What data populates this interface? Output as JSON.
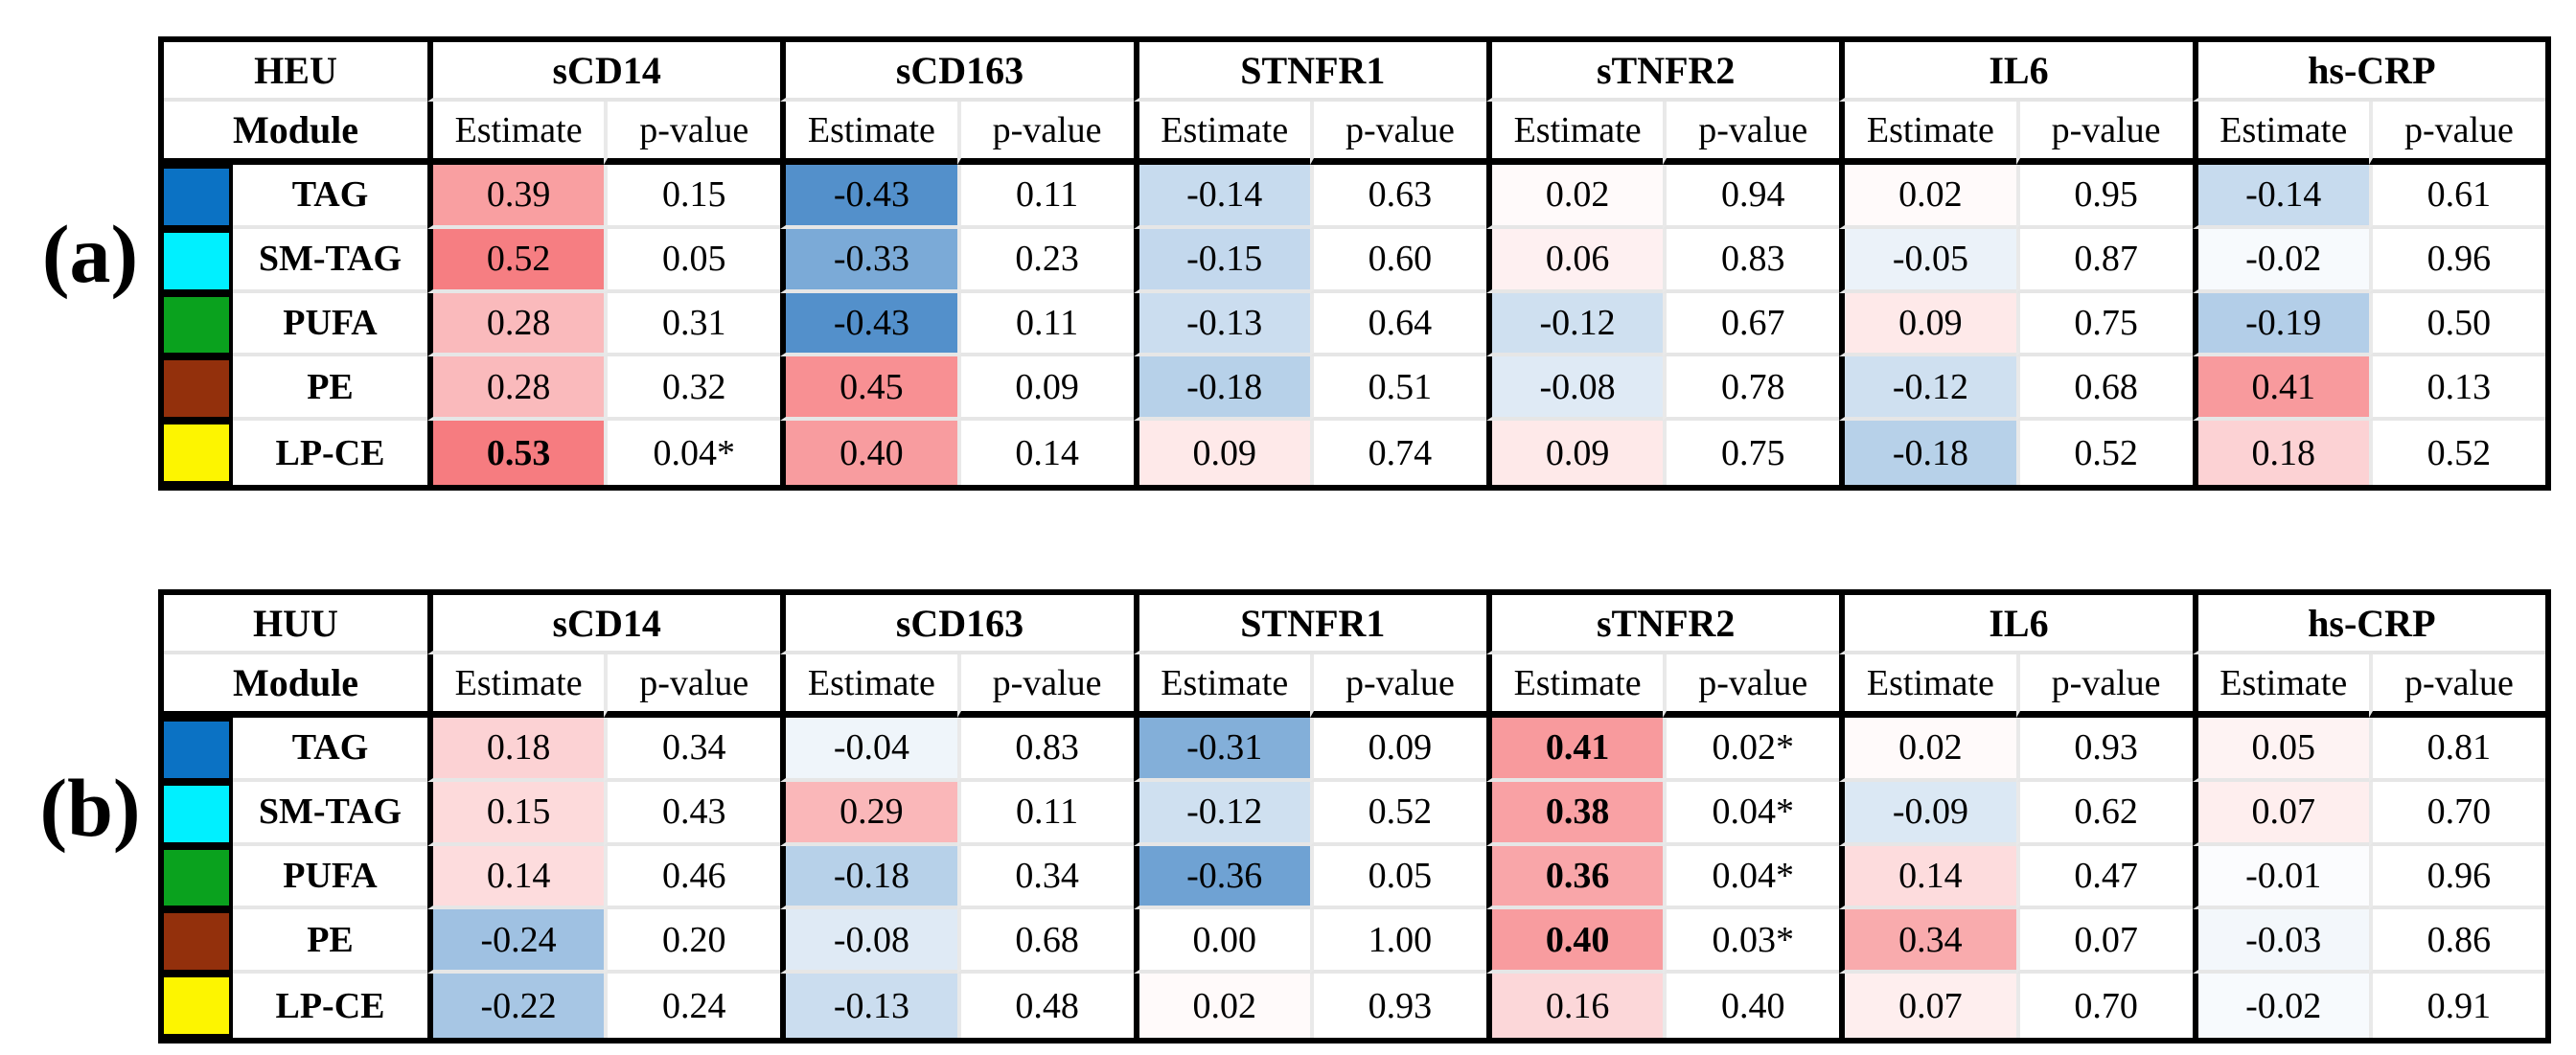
{
  "color_scale": {
    "positive_base": "#F6777B",
    "negative_base": "#2371BC",
    "max_abs": 0.55,
    "row_separator": "#E6E6E6",
    "table_border": "#000000"
  },
  "panel_labels": [
    "(a)",
    "(b)"
  ],
  "chart_data": [
    {
      "type": "heatmap",
      "panel_label": "(a)",
      "cohort": "HEU",
      "module_header": "Module",
      "column_groups": [
        "sCD14",
        "sCD163",
        "STNFR1",
        "sTNFR2",
        "IL6",
        "hs-CRP"
      ],
      "subcolumns": [
        "Estimate",
        "p-value"
      ],
      "modules": [
        {
          "name": "TAG",
          "swatch": "#0B72C4"
        },
        {
          "name": "SM-TAG",
          "swatch": "#00F0FF"
        },
        {
          "name": "PUFA",
          "swatch": "#0AA21E"
        },
        {
          "name": "PE",
          "swatch": "#93300C"
        },
        {
          "name": "LP-CE",
          "swatch": "#FDF500"
        }
      ],
      "rows": [
        {
          "module": "TAG",
          "cells": [
            {
              "estimate": "0.39",
              "p_value": "0.15"
            },
            {
              "estimate": "-0.43",
              "p_value": "0.11"
            },
            {
              "estimate": "-0.14",
              "p_value": "0.63"
            },
            {
              "estimate": "0.02",
              "p_value": "0.94"
            },
            {
              "estimate": "0.02",
              "p_value": "0.95"
            },
            {
              "estimate": "-0.14",
              "p_value": "0.61"
            }
          ]
        },
        {
          "module": "SM-TAG",
          "cells": [
            {
              "estimate": "0.52",
              "p_value": "0.05"
            },
            {
              "estimate": "-0.33",
              "p_value": "0.23"
            },
            {
              "estimate": "-0.15",
              "p_value": "0.60"
            },
            {
              "estimate": "0.06",
              "p_value": "0.83"
            },
            {
              "estimate": "-0.05",
              "p_value": "0.87"
            },
            {
              "estimate": "-0.02",
              "p_value": "0.96"
            }
          ]
        },
        {
          "module": "PUFA",
          "cells": [
            {
              "estimate": "0.28",
              "p_value": "0.31"
            },
            {
              "estimate": "-0.43",
              "p_value": "0.11"
            },
            {
              "estimate": "-0.13",
              "p_value": "0.64"
            },
            {
              "estimate": "-0.12",
              "p_value": "0.67"
            },
            {
              "estimate": "0.09",
              "p_value": "0.75"
            },
            {
              "estimate": "-0.19",
              "p_value": "0.50"
            }
          ]
        },
        {
          "module": "PE",
          "cells": [
            {
              "estimate": "0.28",
              "p_value": "0.32"
            },
            {
              "estimate": "0.45",
              "p_value": "0.09"
            },
            {
              "estimate": "-0.18",
              "p_value": "0.51"
            },
            {
              "estimate": "-0.08",
              "p_value": "0.78"
            },
            {
              "estimate": "-0.12",
              "p_value": "0.68"
            },
            {
              "estimate": "0.41",
              "p_value": "0.13"
            }
          ]
        },
        {
          "module": "LP-CE",
          "cells": [
            {
              "estimate": "0.53",
              "p_value": "0.04*",
              "bold": true
            },
            {
              "estimate": "0.40",
              "p_value": "0.14"
            },
            {
              "estimate": "0.09",
              "p_value": "0.74"
            },
            {
              "estimate": "0.09",
              "p_value": "0.75"
            },
            {
              "estimate": "-0.18",
              "p_value": "0.52"
            },
            {
              "estimate": "0.18",
              "p_value": "0.52"
            }
          ]
        }
      ]
    },
    {
      "type": "heatmap",
      "panel_label": "(b)",
      "cohort": "HUU",
      "module_header": "Module",
      "column_groups": [
        "sCD14",
        "sCD163",
        "STNFR1",
        "sTNFR2",
        "IL6",
        "hs-CRP"
      ],
      "subcolumns": [
        "Estimate",
        "p-value"
      ],
      "modules": [
        {
          "name": "TAG",
          "swatch": "#0B72C4"
        },
        {
          "name": "SM-TAG",
          "swatch": "#00F0FF"
        },
        {
          "name": "PUFA",
          "swatch": "#0AA21E"
        },
        {
          "name": "PE",
          "swatch": "#93300C"
        },
        {
          "name": "LP-CE",
          "swatch": "#FDF500"
        }
      ],
      "rows": [
        {
          "module": "TAG",
          "cells": [
            {
              "estimate": "0.18",
              "p_value": "0.34"
            },
            {
              "estimate": "-0.04",
              "p_value": "0.83"
            },
            {
              "estimate": "-0.31",
              "p_value": "0.09"
            },
            {
              "estimate": "0.41",
              "p_value": "0.02*",
              "bold": true
            },
            {
              "estimate": "0.02",
              "p_value": "0.93"
            },
            {
              "estimate": "0.05",
              "p_value": "0.81"
            }
          ]
        },
        {
          "module": "SM-TAG",
          "cells": [
            {
              "estimate": "0.15",
              "p_value": "0.43"
            },
            {
              "estimate": "0.29",
              "p_value": "0.11"
            },
            {
              "estimate": "-0.12",
              "p_value": "0.52"
            },
            {
              "estimate": "0.38",
              "p_value": "0.04*",
              "bold": true
            },
            {
              "estimate": "-0.09",
              "p_value": "0.62"
            },
            {
              "estimate": "0.07",
              "p_value": "0.70"
            }
          ]
        },
        {
          "module": "PUFA",
          "cells": [
            {
              "estimate": "0.14",
              "p_value": "0.46"
            },
            {
              "estimate": "-0.18",
              "p_value": "0.34"
            },
            {
              "estimate": "-0.36",
              "p_value": "0.05"
            },
            {
              "estimate": "0.36",
              "p_value": "0.04*",
              "bold": true
            },
            {
              "estimate": "0.14",
              "p_value": "0.47"
            },
            {
              "estimate": "-0.01",
              "p_value": "0.96"
            }
          ]
        },
        {
          "module": "PE",
          "cells": [
            {
              "estimate": "-0.24",
              "p_value": "0.20"
            },
            {
              "estimate": "-0.08",
              "p_value": "0.68"
            },
            {
              "estimate": "0.00",
              "p_value": "1.00"
            },
            {
              "estimate": "0.40",
              "p_value": "0.03*",
              "bold": true
            },
            {
              "estimate": "0.34",
              "p_value": "0.07"
            },
            {
              "estimate": "-0.03",
              "p_value": "0.86"
            }
          ]
        },
        {
          "module": "LP-CE",
          "cells": [
            {
              "estimate": "-0.22",
              "p_value": "0.24"
            },
            {
              "estimate": "-0.13",
              "p_value": "0.48"
            },
            {
              "estimate": "0.02",
              "p_value": "0.93"
            },
            {
              "estimate": "0.16",
              "p_value": "0.40"
            },
            {
              "estimate": "0.07",
              "p_value": "0.70"
            },
            {
              "estimate": "-0.02",
              "p_value": "0.91"
            }
          ]
        }
      ]
    }
  ]
}
